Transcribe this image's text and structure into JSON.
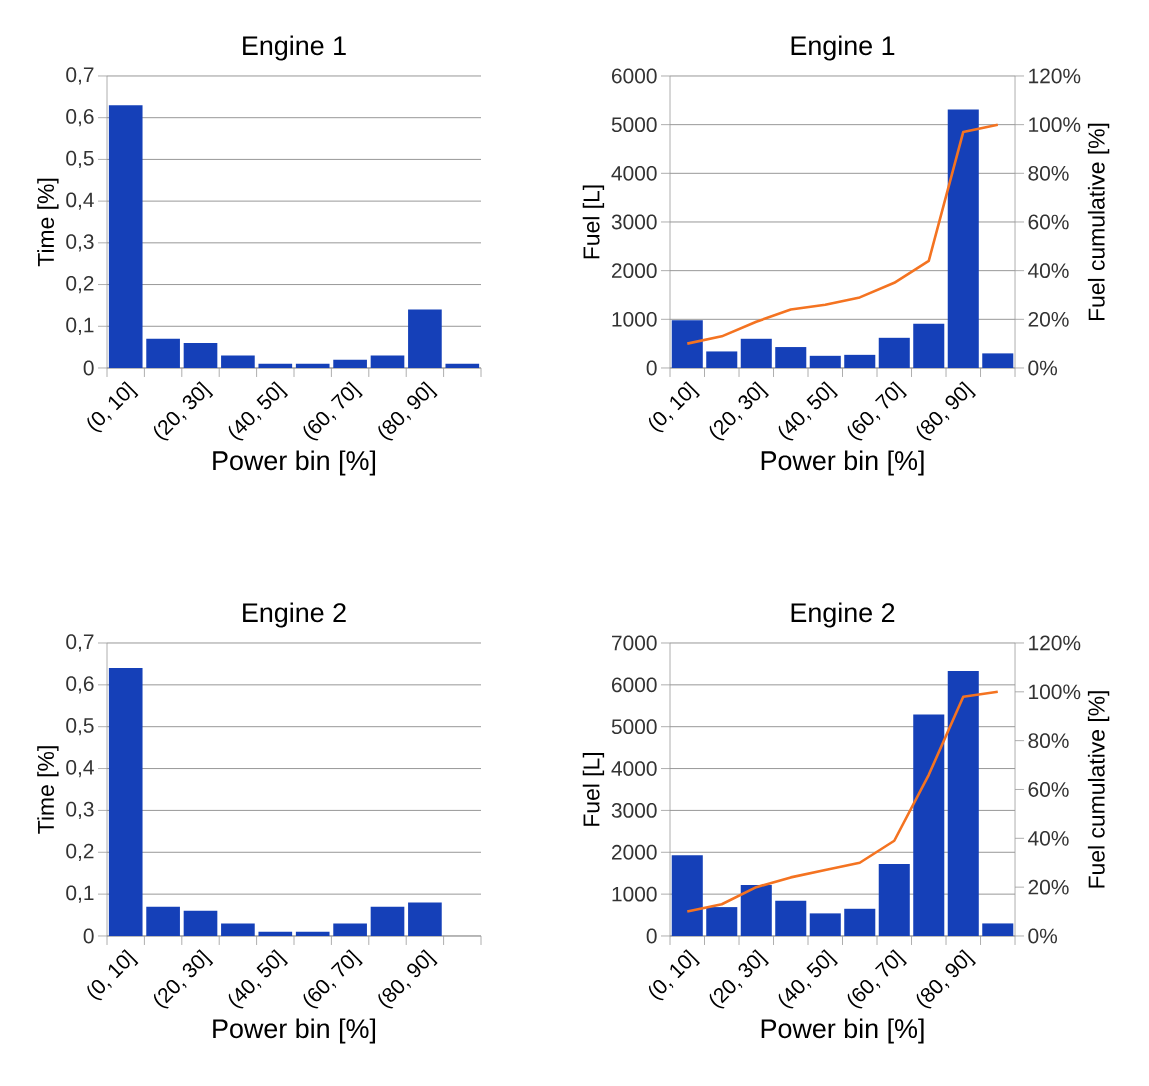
{
  "chart_data": [
    {
      "type": "bar",
      "title": "Engine 1",
      "xlabel": "Power bin [%]",
      "ylabel": "Time [%]",
      "categories": [
        "(0, 10]",
        null,
        "(20, 30]",
        null,
        "(40, 50]",
        null,
        "(60, 70]",
        null,
        "(80, 90]",
        null
      ],
      "values": [
        0.63,
        0.07,
        0.06,
        0.03,
        0.01,
        0.01,
        0.02,
        0.03,
        0.14,
        0.01
      ],
      "color": "#1540b8",
      "ylim": [
        0,
        0.7
      ],
      "yticks": [
        0,
        {
          "value": 0.1,
          "label": "0,1"
        },
        {
          "value": 0.2,
          "label": "0,2"
        },
        {
          "value": 0.3,
          "label": "0,3"
        },
        {
          "value": 0.4,
          "label": "0,4"
        },
        {
          "value": 0.5,
          "label": "0,5"
        },
        {
          "value": 0.6,
          "label": "0,6"
        },
        {
          "value": 0.7,
          "label": "0,7"
        }
      ],
      "grid": "y"
    },
    {
      "type": "bar",
      "title": "Engine 1",
      "xlabel": "Power bin [%]",
      "ylabel": "Fuel [L]",
      "y2label": "Fuel cumulative [%]",
      "categories": [
        "(0, 10]",
        null,
        "(20, 30]",
        null,
        "(40, 50]",
        null,
        "(60, 70]",
        null,
        "(80, 90]",
        null
      ],
      "series": [
        {
          "type": "bar",
          "color": "#1540b8",
          "values": [
            980,
            340,
            600,
            430,
            250,
            270,
            620,
            910,
            5310,
            300
          ]
        },
        {
          "type": "line",
          "axis": "y2",
          "color": "#f47321",
          "values": [
            10,
            13,
            19,
            24,
            26,
            29,
            35,
            44,
            97,
            100
          ]
        }
      ],
      "ylim": [
        0,
        6000
      ],
      "yticks": [
        0,
        1000,
        2000,
        3000,
        4000,
        5000,
        6000
      ],
      "y2lim": [
        0,
        120
      ],
      "y2ticks": [
        {
          "value": 0,
          "label": "0%"
        },
        {
          "value": 20,
          "label": "20%"
        },
        {
          "value": 40,
          "label": "40%"
        },
        {
          "value": 60,
          "label": "60%"
        },
        {
          "value": 80,
          "label": "80%"
        },
        {
          "value": 100,
          "label": "100%"
        },
        {
          "value": 120,
          "label": "120%"
        }
      ],
      "grid": "y"
    },
    {
      "type": "bar",
      "title": "Engine 2",
      "xlabel": "Power bin [%]",
      "ylabel": "Time [%]",
      "categories": [
        "(0, 10]",
        null,
        "(20, 30]",
        null,
        "(40, 50]",
        null,
        "(60, 70]",
        null,
        "(80, 90]",
        null
      ],
      "values": [
        0.64,
        0.07,
        0.06,
        0.03,
        0.01,
        0.01,
        0.03,
        0.07,
        0.08,
        0
      ],
      "color": "#1540b8",
      "ylim": [
        0,
        0.7
      ],
      "yticks": [
        0,
        {
          "value": 0.1,
          "label": "0,1"
        },
        {
          "value": 0.2,
          "label": "0,2"
        },
        {
          "value": 0.3,
          "label": "0,3"
        },
        {
          "value": 0.4,
          "label": "0,4"
        },
        {
          "value": 0.5,
          "label": "0,5"
        },
        {
          "value": 0.6,
          "label": "0,6"
        },
        {
          "value": 0.7,
          "label": "0,7"
        }
      ],
      "grid": "y"
    },
    {
      "type": "bar",
      "title": "Engine 2",
      "xlabel": "Power bin [%]",
      "ylabel": "Fuel [L]",
      "y2label": "Fuel cumulative [%]",
      "categories": [
        "(0, 10]",
        null,
        "(20, 30]",
        null,
        "(40, 50]",
        null,
        "(60, 70]",
        null,
        "(80, 90]",
        null
      ],
      "series": [
        {
          "type": "bar",
          "color": "#1540b8",
          "values": [
            1930,
            690,
            1220,
            840,
            540,
            650,
            1720,
            5290,
            6330,
            300
          ]
        },
        {
          "type": "line",
          "axis": "y2",
          "color": "#f47321",
          "values": [
            10,
            13,
            20,
            24,
            27,
            30,
            39,
            66,
            98,
            100
          ]
        }
      ],
      "ylim": [
        0,
        7000
      ],
      "yticks": [
        0,
        1000,
        2000,
        3000,
        4000,
        5000,
        6000,
        7000
      ],
      "y2lim": [
        0,
        120
      ],
      "y2ticks": [
        {
          "value": 0,
          "label": "0%"
        },
        {
          "value": 20,
          "label": "20%"
        },
        {
          "value": 40,
          "label": "40%"
        },
        {
          "value": 60,
          "label": "60%"
        },
        {
          "value": 80,
          "label": "80%"
        },
        {
          "value": 100,
          "label": "100%"
        },
        {
          "value": 120,
          "label": "120%"
        }
      ],
      "grid": "y"
    }
  ]
}
